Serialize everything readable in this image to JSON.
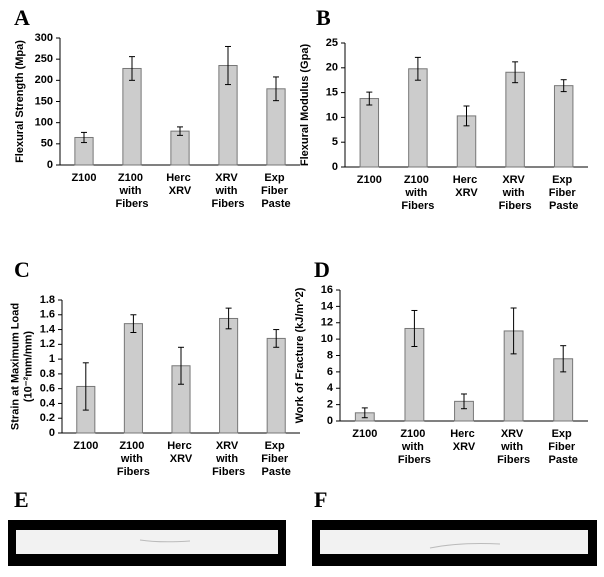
{
  "chart_data": [
    {
      "type": "bar",
      "panel": "A",
      "ylabel": [
        "Flexural Strength (Mpa)"
      ],
      "categories": [
        "Z100",
        "Z100 with Fibers",
        "Herc XRV",
        "XRV with Fibers",
        "Exp Fiber Paste"
      ],
      "values": [
        65,
        228,
        80,
        235,
        180
      ],
      "errors": [
        12,
        28,
        10,
        45,
        28
      ],
      "color": "#cccccc",
      "ylim": [
        0,
        300
      ],
      "yticks": [
        0,
        50,
        100,
        150,
        200,
        250,
        300
      ]
    },
    {
      "type": "bar",
      "panel": "B",
      "ylabel": [
        "Flexural Modulus (Gpa)"
      ],
      "categories": [
        "Z100",
        "Z100 with Fibers",
        "Herc XRV",
        "XRV with Fibers",
        "Exp Fiber Paste"
      ],
      "values": [
        13.8,
        19.8,
        10.3,
        19.1,
        16.4
      ],
      "errors": [
        1.3,
        2.3,
        2,
        2.1,
        1.2
      ],
      "color": "#cccccc",
      "ylim": [
        0,
        25
      ],
      "yticks": [
        0,
        5,
        10,
        15,
        20,
        25
      ]
    },
    {
      "type": "bar",
      "panel": "C",
      "ylabel": [
        "Strain at Maximum Load",
        "(10⁻²mm/mm)"
      ],
      "categories": [
        "Z100",
        "Z100 with Fibers",
        "Herc XRV",
        "XRV with Fibers",
        "Exp Fiber Paste"
      ],
      "values": [
        0.63,
        1.48,
        0.91,
        1.55,
        1.28
      ],
      "errors": [
        0.32,
        0.12,
        0.25,
        0.14,
        0.12
      ],
      "color": "#cccccc",
      "ylim": [
        0,
        1.8
      ],
      "yticks": [
        0,
        0.2,
        0.4,
        0.6,
        0.8,
        1,
        1.2,
        1.4,
        1.6,
        1.8
      ]
    },
    {
      "type": "bar",
      "panel": "D",
      "ylabel": [
        "Work of Fracture  (kJ/m^2)"
      ],
      "categories": [
        "Z100",
        "Z100 with Fibers",
        "Herc XRV",
        "XRV with Fibers",
        "Exp Fiber Paste"
      ],
      "values": [
        1,
        11.3,
        2.4,
        11,
        7.6
      ],
      "errors": [
        0.6,
        2.2,
        0.9,
        2.8,
        1.6
      ],
      "color": "#cccccc",
      "ylim": [
        0,
        16
      ],
      "yticks": [
        0,
        2,
        4,
        6,
        8,
        10,
        12,
        14,
        16
      ]
    }
  ],
  "images": [
    {
      "panel": "E"
    },
    {
      "panel": "F"
    }
  ]
}
